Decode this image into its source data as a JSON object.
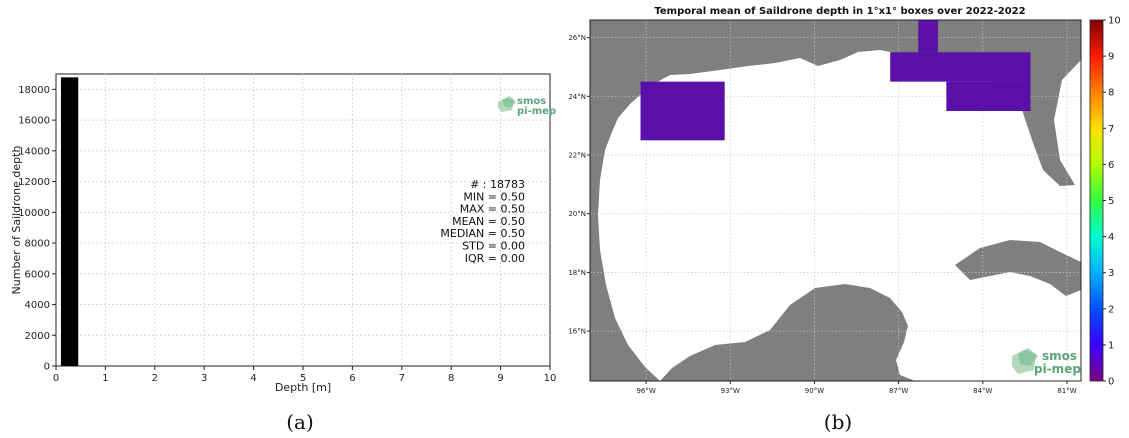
{
  "captions": {
    "a": "(a)",
    "b": "(b)"
  },
  "logo": {
    "line1": "smos",
    "line2": "pi-mep"
  },
  "chart_data": [
    {
      "type": "bar",
      "xlabel": "Depth [m]",
      "ylabel": "Number of Saildrone depth",
      "xlim": [
        0,
        10
      ],
      "ylim": [
        0,
        19000
      ],
      "xticks": [
        0,
        1,
        2,
        3,
        4,
        5,
        6,
        7,
        8,
        9,
        10
      ],
      "yticks": [
        0,
        2000,
        4000,
        6000,
        8000,
        10000,
        12000,
        14000,
        16000,
        18000
      ],
      "grid": true,
      "bars": [
        {
          "x0": 0.1,
          "x1": 0.45,
          "value": 18783
        }
      ],
      "bar_color": "#000000",
      "stats": [
        "# : 18783",
        "MIN = 0.50",
        "MAX =  0.50",
        "MEAN = 0.50",
        "MEDIAN = 0.50",
        "STD = 0.00",
        "IQR = 0.00"
      ]
    },
    {
      "type": "heatmap",
      "title": "Temporal mean of Saildrone depth in 1°x1° boxes over 2022-2022",
      "lon_range": [
        -98,
        -80.5
      ],
      "lat_range": [
        14.3,
        26.6
      ],
      "lon_ticks": [
        "96°W",
        "93°W",
        "90°W",
        "87°W",
        "84°W",
        "81°W"
      ],
      "lon_tick_values": [
        -96,
        -93,
        -90,
        -87,
        -84,
        -81
      ],
      "lat_ticks": [
        "16°N",
        "18°N",
        "20°N",
        "22°N",
        "24°N",
        "26°N"
      ],
      "lat_tick_values": [
        16,
        18,
        20,
        22,
        24,
        26
      ],
      "cells": [
        {
          "lon0": -96.2,
          "lon1": -93.2,
          "lat0": 22.5,
          "lat1": 24.5,
          "value": 0.5
        },
        {
          "lon0": -87.3,
          "lon1": -82.3,
          "lat0": 24.5,
          "lat1": 25.5,
          "value": 0.5
        },
        {
          "lon0": -85.3,
          "lon1": -82.3,
          "lat0": 23.5,
          "lat1": 24.5,
          "value": 0.5
        },
        {
          "lon0": -86.3,
          "lon1": -85.6,
          "lat0": 25.5,
          "lat1": 26.6,
          "value": 0.5
        }
      ],
      "cell_color": "#5a0fa8",
      "land_color": "#7f7f7f",
      "colorbar": {
        "ticks": [
          0,
          1,
          2,
          3,
          4,
          5,
          6,
          7,
          8,
          9,
          10
        ],
        "range": [
          0,
          10
        ],
        "colors": [
          "#800080",
          "#3a00ff",
          "#0050ff",
          "#00b0ff",
          "#00ffd0",
          "#30ff40",
          "#b0ff00",
          "#ffe000",
          "#ff8000",
          "#ff1a00",
          "#800000"
        ]
      }
    }
  ]
}
